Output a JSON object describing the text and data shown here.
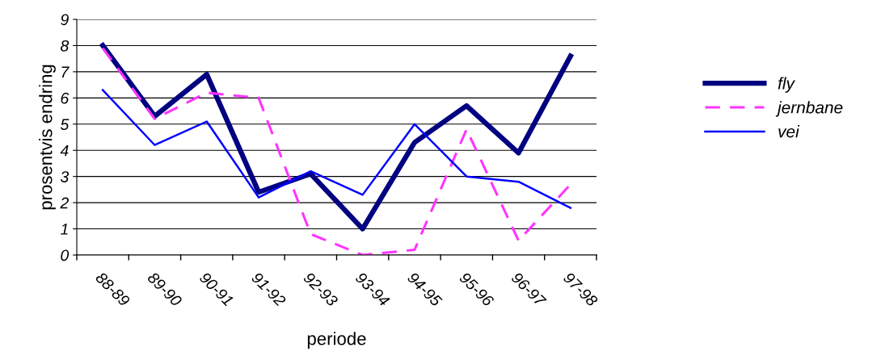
{
  "chart_data": {
    "type": "line",
    "xlabel": "periode",
    "ylabel": "prosentvis endring",
    "categories": [
      "88-89",
      "89-90",
      "90-91",
      "91-92",
      "92-93",
      "93-94",
      "94-95",
      "95-96",
      "96-97",
      "97-98"
    ],
    "series": [
      {
        "name": "fly",
        "color": "#000080",
        "line_style": "solid",
        "values": [
          8.0,
          5.3,
          6.9,
          2.4,
          3.1,
          1.0,
          4.3,
          5.7,
          3.9,
          7.6
        ]
      },
      {
        "name": "jernbane",
        "color": "#ff33ff",
        "line_style": "dashed",
        "values": [
          7.9,
          5.2,
          6.2,
          6.0,
          0.8,
          0.0,
          0.2,
          4.8,
          0.55,
          2.7
        ]
      },
      {
        "name": "vei",
        "color": "#0000ff",
        "line_style": "solid",
        "values": [
          6.3,
          4.2,
          5.1,
          2.2,
          3.2,
          2.3,
          5.0,
          3.0,
          2.8,
          1.8
        ]
      }
    ],
    "ylim": [
      0,
      9
    ],
    "yticks": [
      0,
      1,
      2,
      3,
      4,
      5,
      6,
      7,
      8,
      9
    ],
    "grid": "y",
    "legend": "right",
    "marker": "none"
  }
}
